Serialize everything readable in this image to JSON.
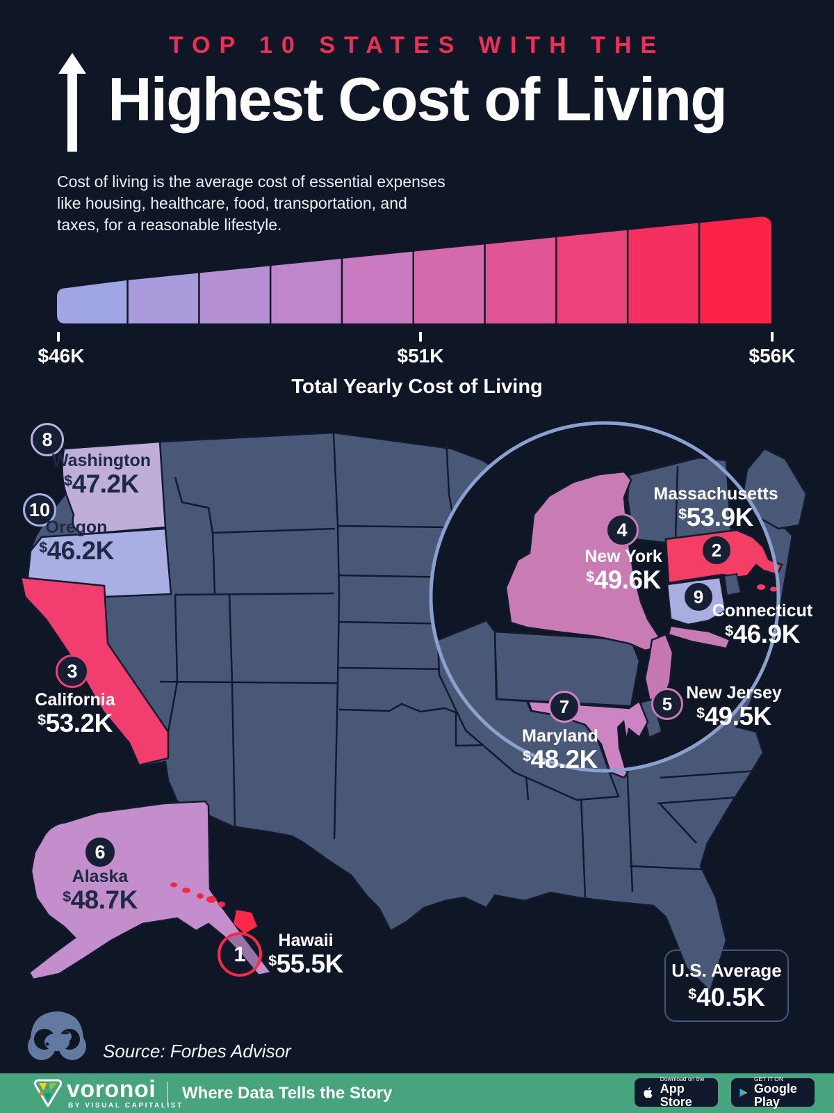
{
  "header": {
    "kicker": "TOP 10 STATES WITH THE",
    "title": "Highest Cost of Living",
    "description_lines": [
      "Cost of living is the average cost of essential expenses",
      "like housing, healthcare, food, transportation, and",
      "taxes, for a reasonable lifestyle."
    ]
  },
  "chart_data": {
    "type": "choropleth_map",
    "title": "Top 10 States with the Highest Cost of Living",
    "scale": {
      "axis_label": "Total Yearly Cost of Living",
      "ticks": [
        "$46K",
        "$51K",
        "$56K"
      ],
      "range_k_usd": [
        46,
        56
      ],
      "segment_colors": [
        "#a0a6e4",
        "#aa9cdc",
        "#b591d4",
        "#bf86cb",
        "#c97ac1",
        "#d569ae",
        "#e15595",
        "#ed417c",
        "#f53061",
        "#fb2149"
      ]
    },
    "us_average": {
      "label": "U.S. Average",
      "value_k_usd": 40.5,
      "value_label": "$40.5K"
    },
    "states": [
      {
        "rank": 1,
        "name": "Hawaii",
        "abbr": "HI",
        "value_k_usd": 55.5,
        "value_label": "$55.5K",
        "color": "#fb2847"
      },
      {
        "rank": 2,
        "name": "Massachusetts",
        "abbr": "MA",
        "value_k_usd": 53.9,
        "value_label": "$53.9K",
        "color": "#f53e63"
      },
      {
        "rank": 3,
        "name": "California",
        "abbr": "CA",
        "value_k_usd": 53.2,
        "value_label": "$53.2K",
        "color": "#f23e6e"
      },
      {
        "rank": 4,
        "name": "New York",
        "abbr": "NY",
        "value_k_usd": 49.6,
        "value_label": "$49.6K",
        "color": "#c97bb3"
      },
      {
        "rank": 5,
        "name": "New Jersey",
        "abbr": "NJ",
        "value_k_usd": 49.5,
        "value_label": "$49.5K",
        "color": "#c678b2"
      },
      {
        "rank": 6,
        "name": "Alaska",
        "abbr": "AK",
        "value_k_usd": 48.7,
        "value_label": "$48.7K",
        "color": "#c38ecb"
      },
      {
        "rank": 7,
        "name": "Maryland",
        "abbr": "MD",
        "value_k_usd": 48.2,
        "value_label": "$48.2K",
        "color": "#cd84c3"
      },
      {
        "rank": 8,
        "name": "Washington",
        "abbr": "WA",
        "value_k_usd": 47.2,
        "value_label": "$47.2K",
        "color": "#bfaed9"
      },
      {
        "rank": 9,
        "name": "Connecticut",
        "abbr": "CT",
        "value_k_usd": 46.9,
        "value_label": "$46.9K",
        "color": "#a9addf"
      },
      {
        "rank": 10,
        "name": "Oregon",
        "abbr": "OR",
        "value_k_usd": 46.2,
        "value_label": "$46.2K",
        "color": "#a9aee3"
      }
    ]
  },
  "source": {
    "text": "Source: Forbes Advisor"
  },
  "footer": {
    "brand": "voronoi",
    "brand_sub": "BY VISUAL CAPITALIST",
    "tagline": "Where Data Tells the Story",
    "app_store": {
      "line1": "Download on the",
      "line2": "App Store"
    },
    "google_play": {
      "line1": "GET IT ON",
      "line2": "Google Play"
    }
  }
}
